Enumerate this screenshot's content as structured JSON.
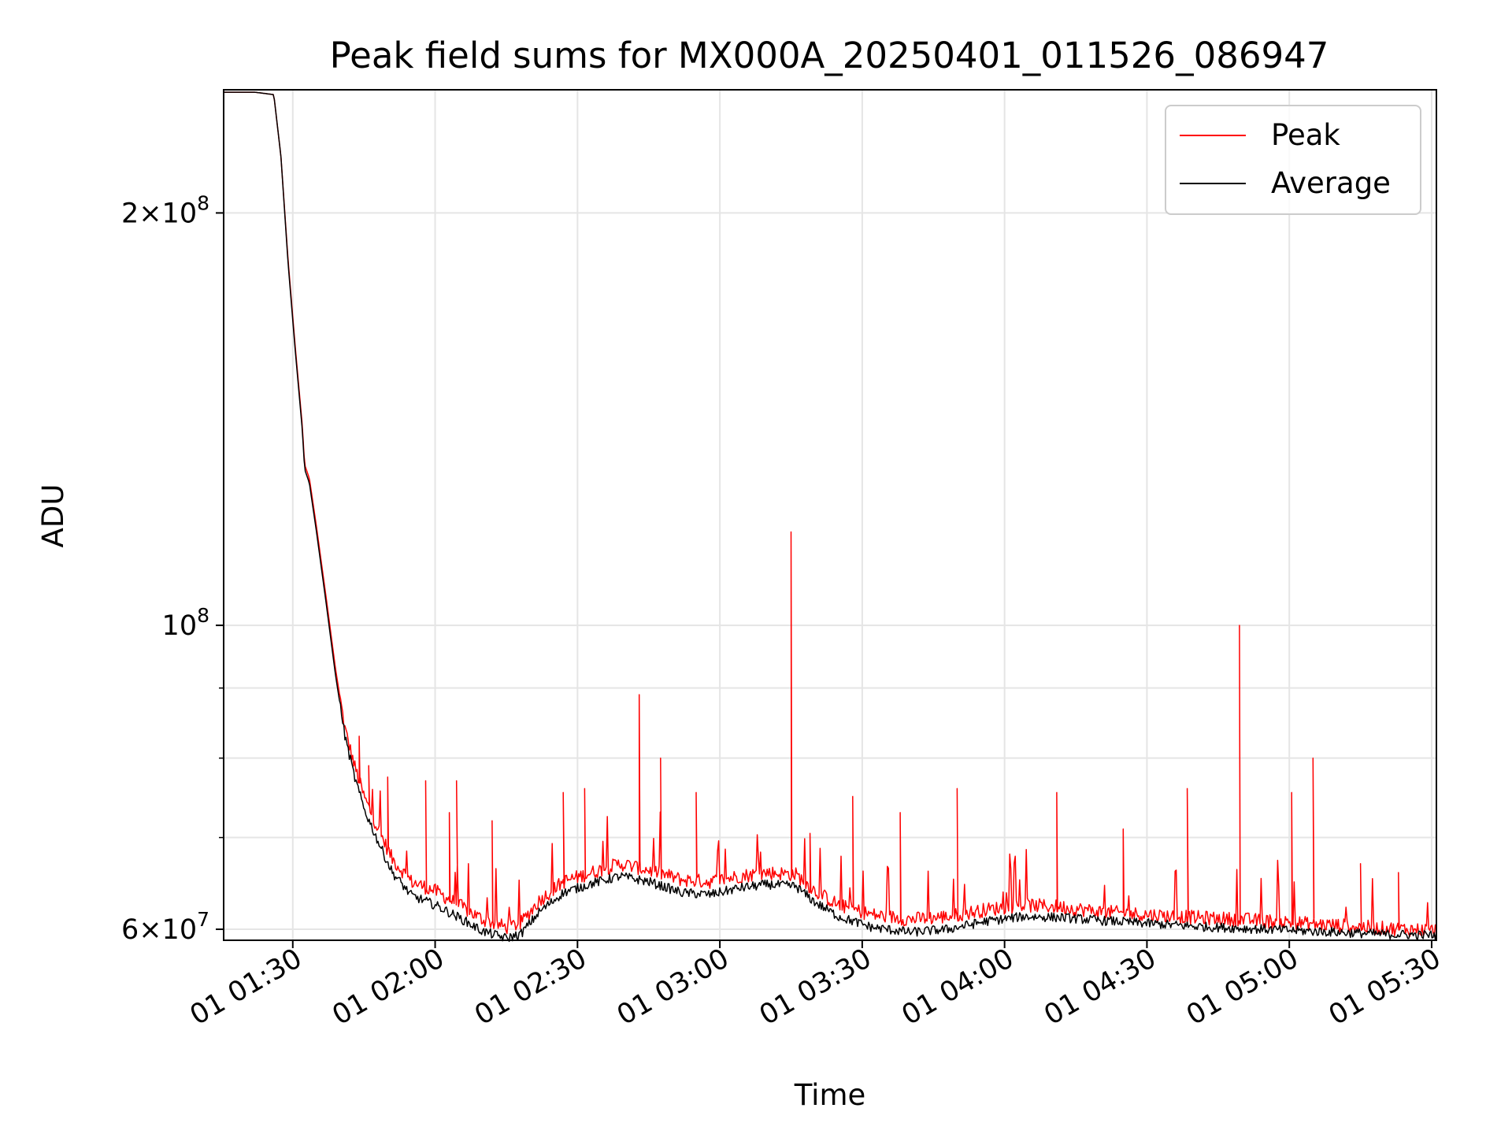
{
  "chart_data": {
    "type": "line",
    "title": "Peak field sums for MX000A_20250401_011526_086947",
    "xlabel": "Time",
    "ylabel": "ADU",
    "yscale": "log",
    "grid": true,
    "legend_position": "top-right",
    "xlim": [
      "2025-04-01 01:15:26",
      "2025-04-01 05:31:00"
    ],
    "ylim": [
      58900000,
      246000000
    ],
    "x_ticks": [
      {
        "t": "2025-04-01 01:30",
        "label": "01 01:30"
      },
      {
        "t": "2025-04-01 02:00",
        "label": "01 02:00"
      },
      {
        "t": "2025-04-01 02:30",
        "label": "01 02:30"
      },
      {
        "t": "2025-04-01 03:00",
        "label": "01 03:00"
      },
      {
        "t": "2025-04-01 03:30",
        "label": "01 03:30"
      },
      {
        "t": "2025-04-01 04:00",
        "label": "01 04:00"
      },
      {
        "t": "2025-04-01 04:30",
        "label": "01 04:30"
      },
      {
        "t": "2025-04-01 05:00",
        "label": "01 05:00"
      },
      {
        "t": "2025-04-01 05:30",
        "label": "01 05:30"
      }
    ],
    "y_ticks": [
      {
        "value": 60000000,
        "base": "6",
        "exp": "7"
      },
      {
        "value": 100000000,
        "base": "",
        "exp": "8"
      },
      {
        "value": 200000000,
        "base": "2",
        "exp": "8"
      }
    ],
    "y_minor_gridlines": [
      70000000,
      80000000,
      90000000
    ],
    "series": [
      {
        "name": "Peak",
        "color": "#ff0000",
        "points": [
          [
            "2025-04-01 01:15:26",
            245000000
          ],
          [
            "2025-04-01 01:22:00",
            245000000
          ],
          [
            "2025-04-01 01:26:00",
            244000000
          ],
          [
            "2025-04-01 01:27:30",
            220000000
          ],
          [
            "2025-04-01 01:29:00",
            185000000
          ],
          [
            "2025-04-01 01:30:30",
            160000000
          ],
          [
            "2025-04-01 01:32:00",
            140000000
          ],
          [
            "2025-04-01 01:32:30",
            131000000
          ],
          [
            "2025-04-01 01:33:30",
            128000000
          ],
          [
            "2025-04-01 01:35:00",
            118000000
          ],
          [
            "2025-04-01 01:37:00",
            105000000
          ],
          [
            "2025-04-01 01:39:00",
            93000000
          ],
          [
            "2025-04-01 01:41:00",
            84000000
          ],
          [
            "2025-04-01 01:43:00",
            79000000
          ],
          [
            "2025-04-01 01:45:00",
            75000000
          ],
          [
            "2025-04-01 01:48:00",
            71000000
          ],
          [
            "2025-04-01 01:51:00",
            67500000
          ],
          [
            "2025-04-01 01:55:00",
            65000000
          ],
          [
            "2025-04-01 02:00:00",
            64000000
          ],
          [
            "2025-04-01 02:05:00",
            62500000
          ],
          [
            "2025-04-01 02:10:00",
            61000000
          ],
          [
            "2025-04-01 02:15:00",
            60200000
          ],
          [
            "2025-04-01 02:18:00",
            60600000
          ],
          [
            "2025-04-01 02:22:00",
            63000000
          ],
          [
            "2025-04-01 02:27:00",
            65000000
          ],
          [
            "2025-04-01 02:33:00",
            66000000
          ],
          [
            "2025-04-01 02:39:00",
            67000000
          ],
          [
            "2025-04-01 02:45:00",
            66300000
          ],
          [
            "2025-04-01 02:52:00",
            65200000
          ],
          [
            "2025-04-01 02:58:00",
            65000000
          ],
          [
            "2025-04-01 03:04:00",
            65600000
          ],
          [
            "2025-04-01 03:10:00",
            66000000
          ],
          [
            "2025-04-01 03:16:00",
            65800000
          ],
          [
            "2025-04-01 03:20:00",
            64000000
          ],
          [
            "2025-04-01 03:25:00",
            62500000
          ],
          [
            "2025-04-01 03:32:00",
            61500000
          ],
          [
            "2025-04-01 03:40:00",
            61000000
          ],
          [
            "2025-04-01 03:48:00",
            61300000
          ],
          [
            "2025-04-01 03:56:00",
            62000000
          ],
          [
            "2025-04-01 04:04:00",
            62500000
          ],
          [
            "2025-04-01 04:12:00",
            62300000
          ],
          [
            "2025-04-01 04:20:00",
            61800000
          ],
          [
            "2025-04-01 04:30:00",
            61500000
          ],
          [
            "2025-04-01 04:40:00",
            61200000
          ],
          [
            "2025-04-01 04:50:00",
            61000000
          ],
          [
            "2025-04-01 05:00:00",
            60700000
          ],
          [
            "2025-04-01 05:10:00",
            60400000
          ],
          [
            "2025-04-01 05:20:00",
            60100000
          ],
          [
            "2025-04-01 05:31:00",
            59900000
          ]
        ],
        "spikes": [
          [
            "2025-04-01 01:44:00",
            83000000
          ],
          [
            "2025-04-01 01:46:00",
            79000000
          ],
          [
            "2025-04-01 01:50:00",
            77500000
          ],
          [
            "2025-04-01 01:58:00",
            77000000
          ],
          [
            "2025-04-01 02:03:00",
            73000000
          ],
          [
            "2025-04-01 02:04:30",
            77000000
          ],
          [
            "2025-04-01 02:12:00",
            72000000
          ],
          [
            "2025-04-01 02:27:00",
            75500000
          ],
          [
            "2025-04-01 02:31:30",
            76000000
          ],
          [
            "2025-04-01 02:43:00",
            89000000
          ],
          [
            "2025-04-01 02:47:30",
            80000000
          ],
          [
            "2025-04-01 02:55:00",
            75500000
          ],
          [
            "2025-04-01 03:15:00",
            117000000
          ],
          [
            "2025-04-01 03:19:00",
            70500000
          ],
          [
            "2025-04-01 03:28:00",
            75000000
          ],
          [
            "2025-04-01 03:38:00",
            73000000
          ],
          [
            "2025-04-01 03:50:00",
            76000000
          ],
          [
            "2025-04-01 04:11:00",
            75500000
          ],
          [
            "2025-04-01 04:25:00",
            71000000
          ],
          [
            "2025-04-01 04:38:30",
            76000000
          ],
          [
            "2025-04-01 04:49:30",
            100000000
          ],
          [
            "2025-04-01 05:00:30",
            75500000
          ],
          [
            "2025-04-01 05:05:00",
            80000000
          ],
          [
            "2025-04-01 05:15:00",
            67000000
          ],
          [
            "2025-04-01 05:23:00",
            66000000
          ]
        ]
      },
      {
        "name": "Average",
        "color": "#000000",
        "points": [
          [
            "2025-04-01 01:15:26",
            245000000
          ],
          [
            "2025-04-01 01:22:00",
            245000000
          ],
          [
            "2025-04-01 01:26:00",
            244000000
          ],
          [
            "2025-04-01 01:27:30",
            220000000
          ],
          [
            "2025-04-01 01:29:00",
            184000000
          ],
          [
            "2025-04-01 01:30:30",
            159000000
          ],
          [
            "2025-04-01 01:32:00",
            139000000
          ],
          [
            "2025-04-01 01:32:30",
            130000000
          ],
          [
            "2025-04-01 01:33:30",
            127000000
          ],
          [
            "2025-04-01 01:35:00",
            117000000
          ],
          [
            "2025-04-01 01:37:00",
            104000000
          ],
          [
            "2025-04-01 01:39:00",
            92000000
          ],
          [
            "2025-04-01 01:41:00",
            83000000
          ],
          [
            "2025-04-01 01:43:00",
            77500000
          ],
          [
            "2025-04-01 01:45:00",
            73500000
          ],
          [
            "2025-04-01 01:48:00",
            69500000
          ],
          [
            "2025-04-01 01:51:00",
            66000000
          ],
          [
            "2025-04-01 01:55:00",
            63500000
          ],
          [
            "2025-04-01 02:00:00",
            62500000
          ],
          [
            "2025-04-01 02:05:00",
            61200000
          ],
          [
            "2025-04-01 02:10:00",
            59800000
          ],
          [
            "2025-04-01 02:15:00",
            59100000
          ],
          [
            "2025-04-01 02:18:00",
            59500000
          ],
          [
            "2025-04-01 02:22:00",
            61800000
          ],
          [
            "2025-04-01 02:27:00",
            63800000
          ],
          [
            "2025-04-01 02:33:00",
            64800000
          ],
          [
            "2025-04-01 02:39:00",
            65600000
          ],
          [
            "2025-04-01 02:45:00",
            65000000
          ],
          [
            "2025-04-01 02:52:00",
            63800000
          ],
          [
            "2025-04-01 02:58:00",
            63600000
          ],
          [
            "2025-04-01 03:04:00",
            64300000
          ],
          [
            "2025-04-01 03:10:00",
            64700000
          ],
          [
            "2025-04-01 03:16:00",
            64500000
          ],
          [
            "2025-04-01 03:20:00",
            62800000
          ],
          [
            "2025-04-01 03:25:00",
            61300000
          ],
          [
            "2025-04-01 03:32:00",
            60200000
          ],
          [
            "2025-04-01 03:40:00",
            59700000
          ],
          [
            "2025-04-01 03:48:00",
            60000000
          ],
          [
            "2025-04-01 03:56:00",
            60800000
          ],
          [
            "2025-04-01 04:04:00",
            61300000
          ],
          [
            "2025-04-01 04:12:00",
            61200000
          ],
          [
            "2025-04-01 04:20:00",
            60900000
          ],
          [
            "2025-04-01 04:30:00",
            60600000
          ],
          [
            "2025-04-01 04:40:00",
            60300000
          ],
          [
            "2025-04-01 04:50:00",
            60100000
          ],
          [
            "2025-04-01 05:00:00",
            59900000
          ],
          [
            "2025-04-01 05:10:00",
            59700000
          ],
          [
            "2025-04-01 05:20:00",
            59500000
          ],
          [
            "2025-04-01 05:31:00",
            59400000
          ]
        ]
      }
    ]
  }
}
